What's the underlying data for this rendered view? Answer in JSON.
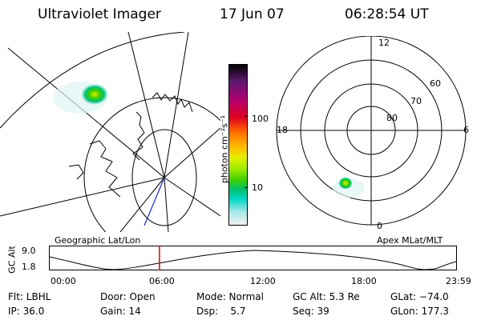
{
  "header": {
    "title": "Ultraviolet Imager",
    "date": "17 Jun 07",
    "time": "06:28:54 UT"
  },
  "colorbar": {
    "label": "photon cm⁻²s⁻¹",
    "ticks": [
      "100",
      "10"
    ],
    "scale": "log",
    "colors": [
      "#000000",
      "#5a1a6e",
      "#b00070",
      "#e00020",
      "#ff6a00",
      "#ffb000",
      "#e8ee00",
      "#9eea00",
      "#3fd000",
      "#00c070",
      "#00d8c8",
      "#a8e8e8",
      "#f0f0f0"
    ]
  },
  "panels": {
    "left_label": "Geographic Lat/Lon",
    "right_label": "Apex MLat/MLT",
    "polar_mlt": [
      "12",
      "18",
      "6",
      "0"
    ],
    "polar_mlat": [
      "60",
      "70",
      "80"
    ]
  },
  "timeline": {
    "ylabel": "GC Alt",
    "yticks": [
      "9.0",
      "1.8"
    ],
    "xticks": [
      "00:00",
      "06:00",
      "12:00",
      "18:00",
      "23:59"
    ],
    "marker_time": "06:28:54",
    "marker_color": "#e00000"
  },
  "info": {
    "filter": "Flt: LBHL",
    "ip": "IP: 36.0",
    "door": "Door: Open",
    "gain": "Gain: 14",
    "mode": "Mode: Normal",
    "dsp": "Dsp:    5.7",
    "gcalt": "GC Alt: 5.3 Re",
    "seq": "Seq: 39",
    "glat": "GLat: −74.0",
    "glon": "GLon: 177.3"
  }
}
